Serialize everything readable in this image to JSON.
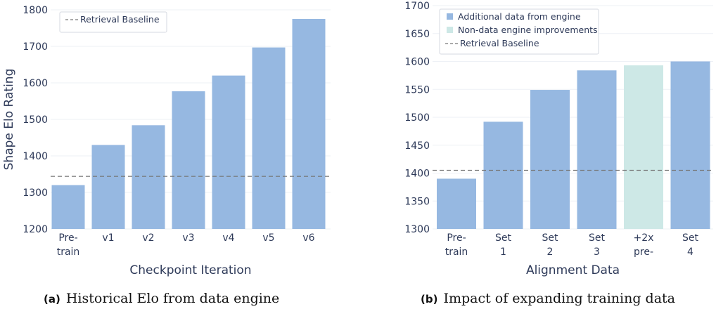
{
  "colors": {
    "bar": "#96b8e1",
    "bar_alt": "#cde8e6",
    "baseline": "#777777",
    "grid": "#eef1f6"
  },
  "captions": {
    "a_tag": "(a)",
    "a_text": "Historical Elo from data engine",
    "b_tag": "(b)",
    "b_text": "Impact of expanding training data"
  },
  "chart_data": [
    {
      "type": "bar",
      "title": "Historical Elo from data engine",
      "xlabel": "Checkpoint Iteration",
      "ylabel": "Shape Elo Rating",
      "ylim": [
        1200,
        1800
      ],
      "yticks": [
        1200,
        1300,
        1400,
        1500,
        1600,
        1700,
        1800
      ],
      "categories": [
        [
          "Pre-",
          "train"
        ],
        [
          "v1"
        ],
        [
          "v2"
        ],
        [
          "v3"
        ],
        [
          "v4"
        ],
        [
          "v5"
        ],
        [
          "v6"
        ]
      ],
      "values": [
        1320,
        1430,
        1484,
        1577,
        1620,
        1697,
        1775
      ],
      "bar_types": [
        "data",
        "data",
        "data",
        "data",
        "data",
        "data",
        "data"
      ],
      "baseline": {
        "label": "Retrieval Baseline",
        "value": 1344
      },
      "legend": [
        {
          "label": "Retrieval Baseline",
          "kind": "line"
        }
      ],
      "legend_position": "top-left"
    },
    {
      "type": "bar",
      "title": "Impact of expanding training data",
      "xlabel": "Alignment Data",
      "ylabel": "",
      "ylim": [
        1300,
        1700
      ],
      "yticks": [
        1300,
        1350,
        1400,
        1450,
        1500,
        1550,
        1600,
        1650,
        1700
      ],
      "categories": [
        [
          "Pre-",
          "train"
        ],
        [
          "Set",
          "1"
        ],
        [
          "Set",
          "2"
        ],
        [
          "Set",
          "3"
        ],
        [
          "+2x",
          "pre-"
        ],
        [
          "Set",
          "4"
        ]
      ],
      "values": [
        1390,
        1492,
        1549,
        1584,
        1593,
        1600
      ],
      "bar_types": [
        "data",
        "data",
        "data",
        "data",
        "nondata",
        "data"
      ],
      "baseline": {
        "label": "Retrieval Baseline",
        "value": 1405
      },
      "legend": [
        {
          "label": "Additional data from engine",
          "kind": "data"
        },
        {
          "label": "Non-data engine improvements",
          "kind": "nondata"
        },
        {
          "label": "Retrieval Baseline",
          "kind": "line"
        }
      ],
      "legend_position": "top-left"
    }
  ]
}
